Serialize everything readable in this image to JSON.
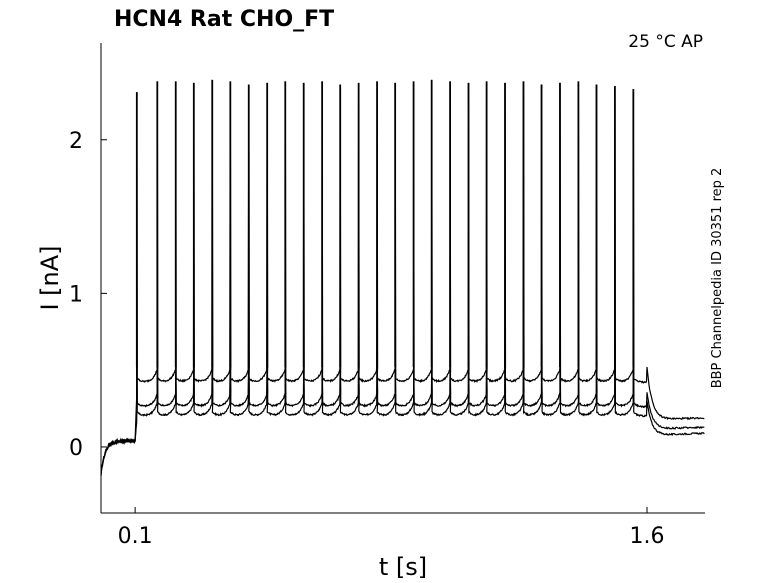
{
  "chart_data": {
    "type": "line",
    "title": "HCN4  Rat  CHO_FT",
    "annotation": "25 °C  AP",
    "side_label": "BBP Channelpedia ID 30351 rep 2",
    "xlabel": "t [s]",
    "ylabel": "I [nA]",
    "xlim": [
      0.0,
      1.77
    ],
    "ylim": [
      -0.43,
      2.63
    ],
    "x_ticks": [
      0.1,
      1.6
    ],
    "x_tick_labels": [
      "0.1",
      "1.6"
    ],
    "y_ticks": [
      0,
      1,
      2
    ],
    "y_tick_labels": [
      "0",
      "1",
      "2"
    ],
    "grid": false,
    "line_color": "#000000",
    "stimulus": {
      "onset_s": 0.1,
      "offset_s": 1.6,
      "spike_times_s": [
        0.105,
        0.165,
        0.219,
        0.272,
        0.326,
        0.379,
        0.433,
        0.487,
        0.54,
        0.594,
        0.648,
        0.701,
        0.755,
        0.809,
        0.862,
        0.916,
        0.969,
        1.023,
        1.077,
        1.13,
        1.184,
        1.238,
        1.291,
        1.345,
        1.399,
        1.452,
        1.506,
        1.56
      ],
      "spike_peaks_nA": [
        2.31,
        2.38,
        2.38,
        2.37,
        2.39,
        2.38,
        2.36,
        2.37,
        2.38,
        2.37,
        2.38,
        2.36,
        2.37,
        2.38,
        2.37,
        2.38,
        2.39,
        2.38,
        2.37,
        2.38,
        2.37,
        2.38,
        2.36,
        2.37,
        2.38,
        2.36,
        2.35,
        2.33
      ]
    },
    "series": [
      {
        "baseline_nA": 0.2,
        "pre_nA": 0.04,
        "post_end_nA": 0.09
      },
      {
        "baseline_nA": 0.26,
        "pre_nA": 0.04,
        "post_end_nA": 0.13
      },
      {
        "baseline_nA": 0.42,
        "pre_nA": 0.04,
        "post_end_nA": 0.19
      }
    ]
  }
}
